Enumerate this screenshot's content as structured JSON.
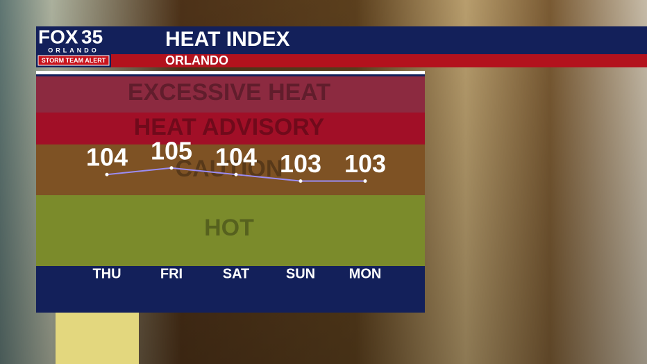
{
  "header": {
    "logo": "FOX",
    "logo_num": "35",
    "logo_city": "ORLANDO",
    "alert": "STORM TEAM ALERT",
    "title": "HEAT INDEX",
    "subtitle": "ORLANDO"
  },
  "chart_data": {
    "type": "line",
    "categories": [
      "THU",
      "FRI",
      "SAT",
      "SUN",
      "MON"
    ],
    "values": [
      104,
      105,
      104,
      103,
      103
    ],
    "color": "#9b8cf2",
    "ylim": [
      90,
      119
    ],
    "zones": [
      "EXCESSIVE HEAT",
      "HEAT ADVISORY",
      "CAUTION",
      "HOT"
    ]
  }
}
